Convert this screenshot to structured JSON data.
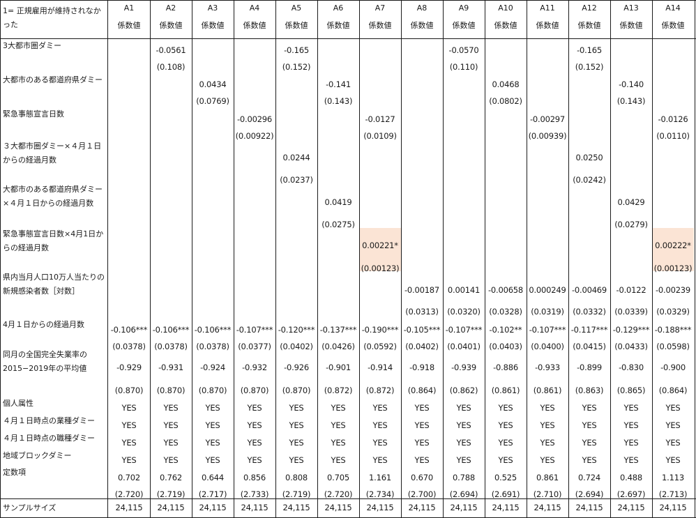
{
  "table": {
    "corner_label": "1= 正規雇用が維持されなかった",
    "columns": [
      "A1",
      "A2",
      "A3",
      "A4",
      "A5",
      "A6",
      "A7",
      "A8",
      "A9",
      "A10",
      "A11",
      "A12",
      "A13",
      "A14"
    ],
    "column_sublabel": "係数値",
    "highlight_color": "#fbe4d5",
    "rows": [
      {
        "label": "3大都市圏ダミー",
        "coef": [
          "",
          "-0.0561",
          "",
          "",
          "-0.165",
          "",
          "",
          "",
          "-0.0570",
          "",
          "",
          "-0.165",
          "",
          ""
        ],
        "se": [
          "",
          "(0.108)",
          "",
          "",
          "(0.152)",
          "",
          "",
          "",
          "(0.110)",
          "",
          "",
          "(0.152)",
          "",
          ""
        ]
      },
      {
        "label": "大都市のある都道府県ダミー",
        "coef": [
          "",
          "",
          "0.0434",
          "",
          "",
          "-0.141",
          "",
          "",
          "",
          "0.0468",
          "",
          "",
          "-0.140",
          ""
        ],
        "se": [
          "",
          "",
          "(0.0769)",
          "",
          "",
          "(0.143)",
          "",
          "",
          "",
          "(0.0802)",
          "",
          "",
          "(0.143)",
          ""
        ]
      },
      {
        "label": "緊急事態宣言日数",
        "coef": [
          "",
          "",
          "",
          "-0.00296",
          "",
          "",
          "-0.0127",
          "",
          "",
          "",
          "-0.00297",
          "",
          "",
          "-0.0126"
        ],
        "se": [
          "",
          "",
          "",
          "(0.00922)",
          "",
          "",
          "(0.0109)",
          "",
          "",
          "",
          "(0.00939)",
          "",
          "",
          "(0.0110)"
        ]
      },
      {
        "label": "３大都市圏ダミー×４月１日からの経過月数",
        "coef": [
          "",
          "",
          "",
          "",
          "0.0244",
          "",
          "",
          "",
          "",
          "",
          "",
          "0.0250",
          "",
          ""
        ],
        "se": [
          "",
          "",
          "",
          "",
          "(0.0237)",
          "",
          "",
          "",
          "",
          "",
          "",
          "(0.0242)",
          "",
          ""
        ]
      },
      {
        "label": "大都市のある都道府県ダミー×４月１日からの経過月数",
        "coef": [
          "",
          "",
          "",
          "",
          "",
          "0.0419",
          "",
          "",
          "",
          "",
          "",
          "",
          "0.0429",
          ""
        ],
        "se": [
          "",
          "",
          "",
          "",
          "",
          "(0.0275)",
          "",
          "",
          "",
          "",
          "",
          "",
          "(0.0279)",
          ""
        ]
      },
      {
        "label": "緊急事態宣言日数×4月1日からの経過月数",
        "coef": [
          "",
          "",
          "",
          "",
          "",
          "",
          "0.00221*",
          "",
          "",
          "",
          "",
          "",
          "",
          "0.00222*"
        ],
        "se": [
          "",
          "",
          "",
          "",
          "",
          "",
          "(0.00123)",
          "",
          "",
          "",
          "",
          "",
          "",
          "(0.00123)"
        ]
      },
      {
        "label": "県内当月人口10万人当たりの新規感染者数［対数］",
        "coef": [
          "",
          "",
          "",
          "",
          "",
          "",
          "",
          "-0.00187",
          "0.00141",
          "-0.00658",
          "0.000249",
          "-0.00469",
          "-0.0122",
          "-0.00239"
        ],
        "se": [
          "",
          "",
          "",
          "",
          "",
          "",
          "",
          "(0.0313)",
          "(0.0320)",
          "(0.0328)",
          "(0.0319)",
          "(0.0332)",
          "(0.0339)",
          "(0.0329)"
        ]
      },
      {
        "label": "4月１日からの経過月数",
        "coef": [
          "-0.106***",
          "-0.106***",
          "-0.106***",
          "-0.107***",
          "-0.120***",
          "-0.137***",
          "-0.190***",
          "-0.105***",
          "-0.107***",
          "-0.102**",
          "-0.107***",
          "-0.117***",
          "-0.129***",
          "-0.188***"
        ],
        "se": [
          "(0.0378)",
          "(0.0378)",
          "(0.0378)",
          "(0.0377)",
          "(0.0402)",
          "(0.0426)",
          "(0.0592)",
          "(0.0402)",
          "(0.0401)",
          "(0.0403)",
          "(0.0400)",
          "(0.0415)",
          "(0.0433)",
          "(0.0598)"
        ]
      },
      {
        "label": "同月の全国完全失業率の2015−2019年の平均値",
        "coef": [
          "-0.929",
          "-0.931",
          "-0.924",
          "-0.932",
          "-0.926",
          "-0.901",
          "-0.914",
          "-0.918",
          "-0.939",
          "-0.886",
          "-0.933",
          "-0.899",
          "-0.830",
          "-0.900"
        ],
        "se": [
          "(0.870)",
          "(0.870)",
          "(0.870)",
          "(0.870)",
          "(0.870)",
          "(0.872)",
          "(0.872)",
          "(0.864)",
          "(0.862)",
          "(0.861)",
          "(0.861)",
          "(0.863)",
          "(0.865)",
          "(0.864)"
        ]
      },
      {
        "label": "個人属性",
        "coef": [
          "YES",
          "YES",
          "YES",
          "YES",
          "YES",
          "YES",
          "YES",
          "YES",
          "YES",
          "YES",
          "YES",
          "YES",
          "YES",
          "YES"
        ],
        "se": []
      },
      {
        "label": "４月１日時点の業種ダミー",
        "coef": [
          "YES",
          "YES",
          "YES",
          "YES",
          "YES",
          "YES",
          "YES",
          "YES",
          "YES",
          "YES",
          "YES",
          "YES",
          "YES",
          "YES"
        ],
        "se": []
      },
      {
        "label": "４月１日時点の職種ダミー",
        "coef": [
          "YES",
          "YES",
          "YES",
          "YES",
          "YES",
          "YES",
          "YES",
          "YES",
          "YES",
          "YES",
          "YES",
          "YES",
          "YES",
          "YES"
        ],
        "se": []
      },
      {
        "label": "地域ブロックダミー",
        "coef": [
          "YES",
          "YES",
          "YES",
          "YES",
          "YES",
          "YES",
          "YES",
          "YES",
          "YES",
          "YES",
          "YES",
          "YES",
          "YES",
          "YES"
        ],
        "se": []
      },
      {
        "label": "定数項",
        "coef": [
          "0.702",
          "0.762",
          "0.644",
          "0.856",
          "0.808",
          "0.705",
          "1.161",
          "0.670",
          "0.788",
          "0.525",
          "0.861",
          "0.724",
          "0.488",
          "1.113"
        ],
        "se": [
          "(2.720)",
          "(2.719)",
          "(2.717)",
          "(2.733)",
          "(2.719)",
          "(2.720)",
          "(2.734)",
          "(2.700)",
          "(2.694)",
          "(2.691)",
          "(2.710)",
          "(2.694)",
          "(2.697)",
          "(2.713)"
        ]
      },
      {
        "label": "サンプルサイズ",
        "coef": [
          "24,115",
          "24,115",
          "24,115",
          "24,115",
          "24,115",
          "24,115",
          "24,115",
          "24,115",
          "24,115",
          "24,115",
          "24,115",
          "24,115",
          "24,115",
          "24,115"
        ],
        "se": []
      }
    ]
  }
}
